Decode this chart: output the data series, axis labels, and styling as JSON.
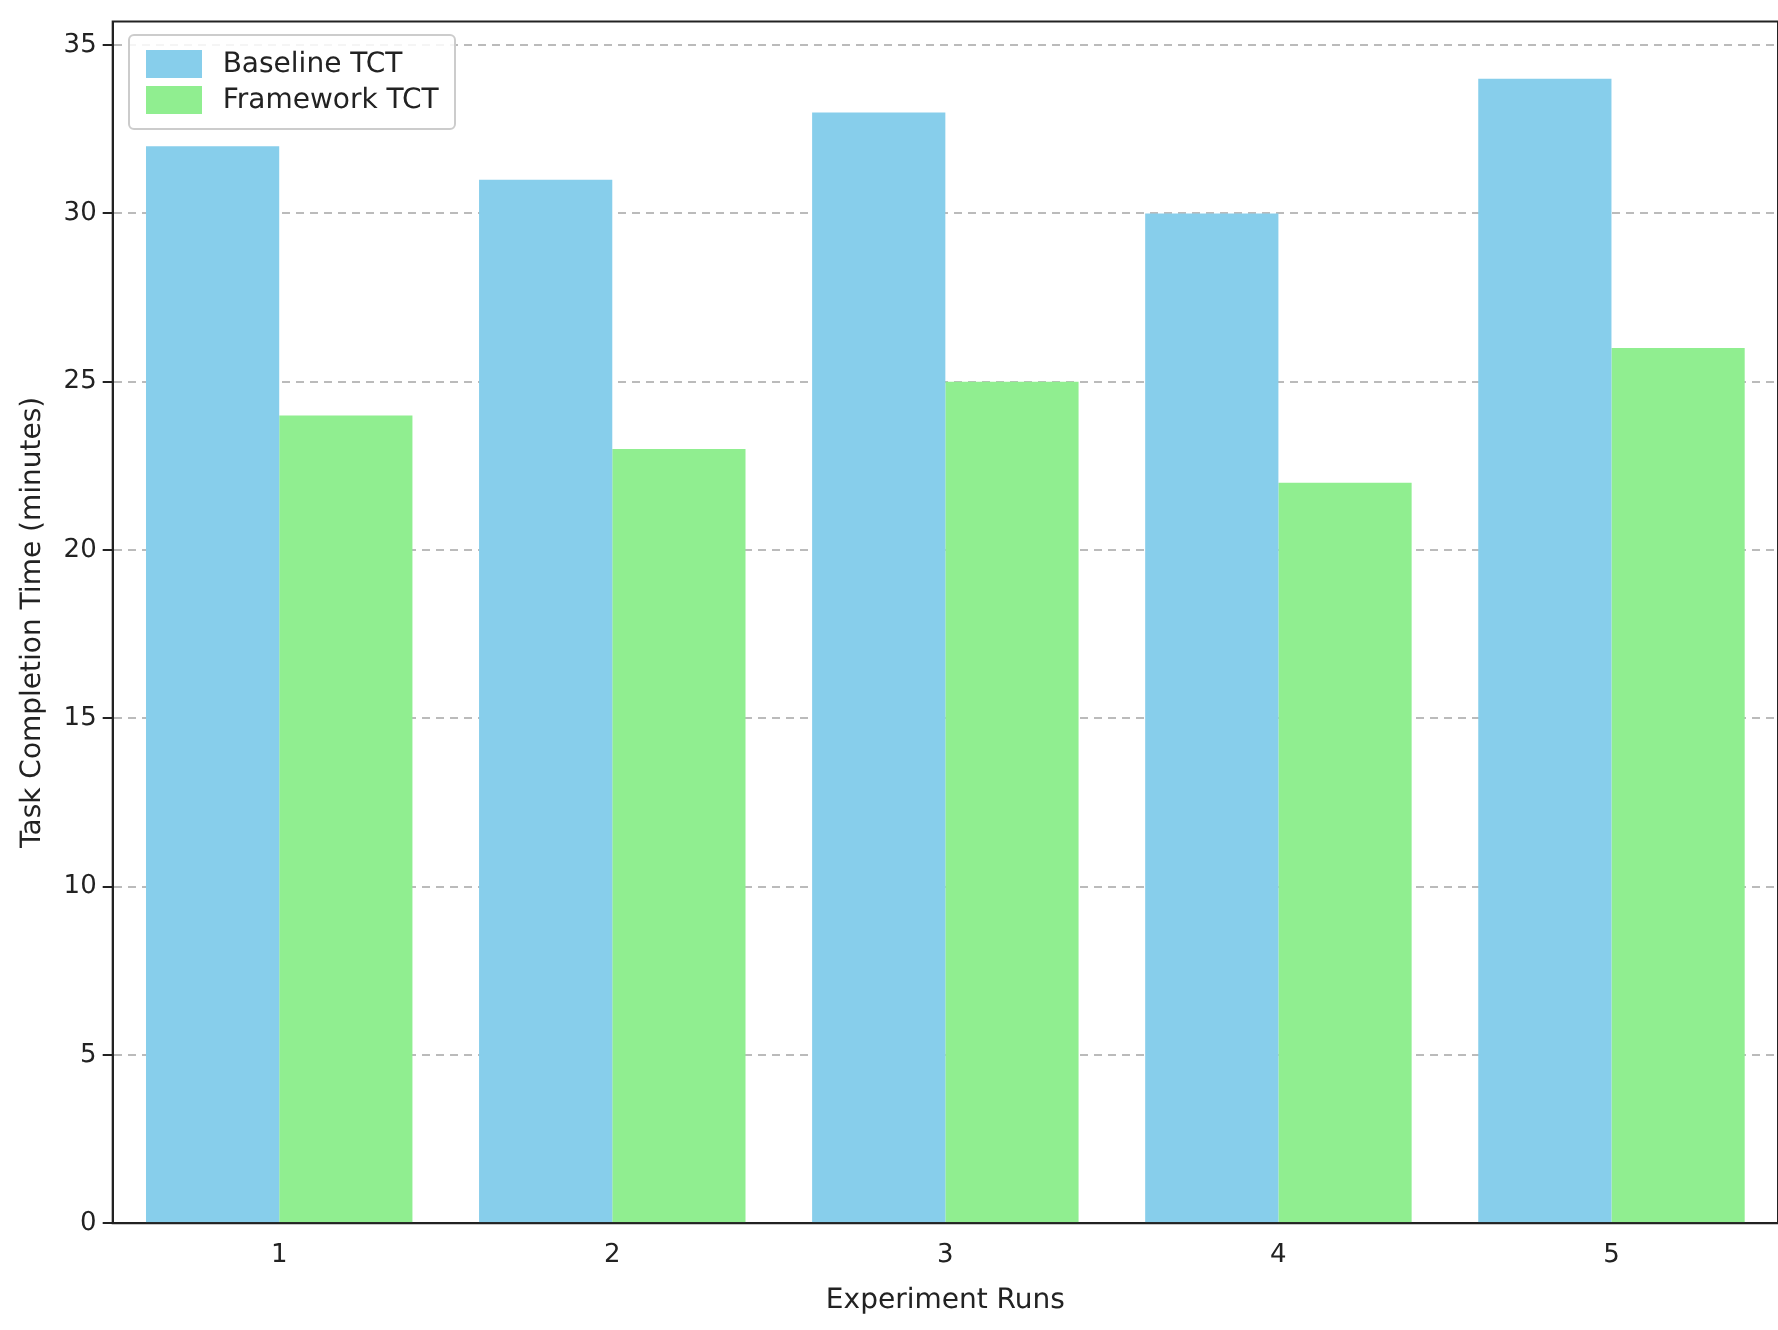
{
  "chart_data": {
    "type": "bar",
    "xlabel": "Experiment Runs",
    "ylabel": "Task Completion Time (minutes)",
    "categories": [
      "1",
      "2",
      "3",
      "4",
      "5"
    ],
    "series": [
      {
        "name": "Baseline TCT",
        "color": "#87ceeb",
        "values": [
          32,
          31,
          33,
          30,
          34
        ]
      },
      {
        "name": "Framework TCT",
        "color": "#90ee90",
        "values": [
          24,
          23,
          25,
          22,
          26
        ]
      }
    ],
    "ylim": [
      0,
      35.7
    ],
    "yticks": [
      0,
      5,
      10,
      15,
      20,
      25,
      30,
      35
    ],
    "grid": "y",
    "legend": "top left"
  }
}
